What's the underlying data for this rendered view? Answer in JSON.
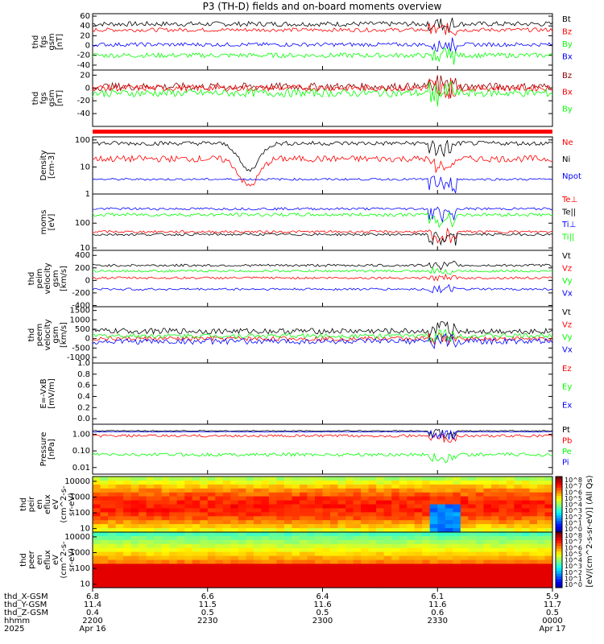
{
  "title": "P3 (TH-D) fields and on-board moments overview",
  "colors": {
    "black": "#000000",
    "red": "#ff0000",
    "green": "#00ff00",
    "blue": "#0000ff",
    "darkred": "#8b0000"
  },
  "chart_data": {
    "type": "line",
    "x_ticks": [
      {
        "pos": 0.0,
        "time": "2200",
        "date": "Apr 16",
        "x": "6.8",
        "y": "11.4",
        "z": "0.4"
      },
      {
        "pos": 0.25,
        "time": "2230",
        "date": "",
        "x": "6.6",
        "y": "11.5",
        "z": "0.5"
      },
      {
        "pos": 0.5,
        "time": "2300",
        "date": "",
        "x": "6.4",
        "y": "11.6",
        "z": "0.5"
      },
      {
        "pos": 0.75,
        "time": "2330",
        "date": "",
        "x": "6.1",
        "y": "11.6",
        "z": "0.6"
      },
      {
        "pos": 1.0,
        "time": "0000",
        "date": "Apr 17",
        "x": "5.9",
        "y": "11.7",
        "z": "0.5"
      }
    ],
    "bottom_labels": [
      "thd_X-GSM",
      "thd_Y-GSM",
      "thd_Z-GSM",
      "hhmm",
      "2025"
    ],
    "panels": [
      {
        "ylabel": [
          "thd",
          "fgs",
          "gsm",
          "[nT]"
        ],
        "scale": "lin",
        "ylim": [
          -50,
          65
        ],
        "ticks": [
          {
            "v": 60,
            "l": "60"
          },
          {
            "v": 40,
            "l": "40"
          },
          {
            "v": 20,
            "l": "20"
          },
          {
            "v": 0,
            "l": "0"
          },
          {
            "v": -20,
            "l": "-20"
          },
          {
            "v": -40,
            "l": "-40"
          }
        ],
        "series": [
          {
            "name": "Bt",
            "color": "#000000",
            "base": 44,
            "noise": 5
          },
          {
            "name": "Bz",
            "color": "#ff0000",
            "base": 32,
            "noise": 4
          },
          {
            "name": "By",
            "color": "#00ff00",
            "base": -20,
            "noise": 5
          },
          {
            "name": "Bx",
            "color": "#0000ff",
            "base": 2,
            "noise": 4
          }
        ]
      },
      {
        "ylabel": [
          "thd",
          "fgs",
          "gsm",
          "[nT]"
        ],
        "scale": "lin",
        "ylim": [
          -60,
          28
        ],
        "ticks": [
          {
            "v": 20,
            "l": "20"
          },
          {
            "v": 0,
            "l": "0"
          },
          {
            "v": -20,
            "l": "-20"
          },
          {
            "v": -40,
            "l": "-40"
          }
        ],
        "series": [
          {
            "name": "Bz",
            "color": "#8b0000",
            "base": 2,
            "noise": 6
          },
          {
            "name": "Bx",
            "color": "#ff0000",
            "base": 0,
            "noise": 5
          },
          {
            "name": "By",
            "color": "#00ff00",
            "base": -8,
            "noise": 6
          }
        ]
      },
      {
        "ylabel": [
          "Density",
          "[cm-3]"
        ],
        "scale": "log",
        "ylim": [
          1,
          130
        ],
        "ticks": [
          {
            "v": 100,
            "l": "100"
          },
          {
            "v": 10,
            "l": "10"
          },
          {
            "v": 1,
            "l": "1"
          }
        ],
        "series": [
          {
            "name": "Ne",
            "color": "#ff0000",
            "base": 20,
            "noise": 0.12
          },
          {
            "name": "Ni",
            "color": "#000000",
            "base": 75,
            "noise": 0.08
          },
          {
            "name": "Npot",
            "color": "#0000ff",
            "base": 3.5,
            "noise": 0.04
          }
        ]
      },
      {
        "ylabel": [
          "moms",
          "[eV]"
        ],
        "scale": "log",
        "ylim": [
          8,
          1500
        ],
        "ticks": [
          {
            "v": 100,
            "l": "100"
          },
          {
            "v": 10,
            "l": "10"
          }
        ],
        "series": [
          {
            "name": "Te⊥",
            "color": "#ff0000",
            "base": 45,
            "noise": 0.05
          },
          {
            "name": "Te||",
            "color": "#000000",
            "base": 35,
            "noise": 0.05
          },
          {
            "name": "Ti⊥",
            "color": "#0000ff",
            "base": 380,
            "noise": 0.05
          },
          {
            "name": "Ti||",
            "color": "#00ff00",
            "base": 220,
            "noise": 0.07
          }
        ]
      },
      {
        "ylabel": [
          "thd",
          "peim",
          "velocity",
          "gsm",
          "[km/s]"
        ],
        "scale": "lin",
        "ylim": [
          -420,
          480
        ],
        "ticks": [
          {
            "v": 400,
            "l": "400"
          },
          {
            "v": 200,
            "l": "200"
          },
          {
            "v": 0,
            "l": "0"
          },
          {
            "v": -200,
            "l": "-200"
          },
          {
            "v": -400,
            "l": "-400"
          }
        ],
        "series": [
          {
            "name": "Vt",
            "color": "#000000",
            "base": 240,
            "noise": 20
          },
          {
            "name": "Vz",
            "color": "#ff0000",
            "base": 40,
            "noise": 18
          },
          {
            "name": "Vy",
            "color": "#00ff00",
            "base": 150,
            "noise": 18
          },
          {
            "name": "Vx",
            "color": "#0000ff",
            "base": -140,
            "noise": 18
          }
        ]
      },
      {
        "ylabel": [
          "thd",
          "peem",
          "velocity",
          "gsm",
          "[km/s]"
        ],
        "scale": "lin",
        "ylim": [
          -1300,
          1700
        ],
        "ticks": [
          {
            "v": 1500,
            "l": "1500"
          },
          {
            "v": 1000,
            "l": "1000"
          },
          {
            "v": 500,
            "l": "500"
          },
          {
            "v": 0,
            "l": "0"
          },
          {
            "v": -500,
            "l": "-500"
          },
          {
            "v": -1000,
            "l": "-1000"
          }
        ],
        "series": [
          {
            "name": "Vt",
            "color": "#000000",
            "base": 400,
            "noise": 150
          },
          {
            "name": "Vz",
            "color": "#ff0000",
            "base": 0,
            "noise": 120
          },
          {
            "name": "Vy",
            "color": "#00ff00",
            "base": 150,
            "noise": 120
          },
          {
            "name": "Vx",
            "color": "#0000ff",
            "base": -150,
            "noise": 150
          }
        ]
      },
      {
        "ylabel": [
          "E=-VxB",
          "[mV/m]"
        ],
        "scale": "lin",
        "ylim": [
          -0.1,
          1.0
        ],
        "ticks": [
          {
            "v": 1.0,
            "l": "1.0"
          },
          {
            "v": 0.8,
            "l": "0.8"
          },
          {
            "v": 0.6,
            "l": "0.6"
          },
          {
            "v": 0.4,
            "l": "0.4"
          },
          {
            "v": 0.2,
            "l": "0.2"
          },
          {
            "v": 0.0,
            "l": "0.0"
          }
        ],
        "series": [
          {
            "name": "Ez",
            "color": "#ff0000",
            "base": null,
            "noise": 0
          },
          {
            "name": "Ey",
            "color": "#00ff00",
            "base": null,
            "noise": 0
          },
          {
            "name": "Ex",
            "color": "#0000ff",
            "base": null,
            "noise": 0
          }
        ]
      },
      {
        "ylabel": [
          "Pressure",
          "[nPa]"
        ],
        "scale": "log",
        "ylim": [
          0.004,
          4
        ],
        "ticks": [
          {
            "v": 1.0,
            "l": "1.00"
          },
          {
            "v": 0.1,
            "l": "0.10"
          },
          {
            "v": 0.01,
            "l": "0.01"
          }
        ],
        "series": [
          {
            "name": "Pt",
            "color": "#000000",
            "base": 1.6,
            "noise": 0.03
          },
          {
            "name": "Pb",
            "color": "#ff0000",
            "base": 0.8,
            "noise": 0.08
          },
          {
            "name": "Pe",
            "color": "#00ff00",
            "base": 0.06,
            "noise": 0.1
          },
          {
            "name": "Pi",
            "color": "#0000ff",
            "base": 1.4,
            "noise": 0.02
          }
        ]
      }
    ],
    "spectrograms": [
      {
        "ylabel": [
          "thd",
          "peir",
          "en",
          "eflux",
          "eV",
          "(cm^2-s-",
          "sr-eV)"
        ],
        "ticks": [
          {
            "v": 10000,
            "l": "10000"
          },
          {
            "v": 1000,
            "l": "1000"
          },
          {
            "v": 100,
            "l": "100"
          },
          {
            "v": 10,
            "l": "10"
          }
        ],
        "ylim": [
          6,
          20000
        ]
      },
      {
        "ylabel": [
          "thd",
          "peer",
          "en",
          "eflux",
          "eV",
          "(cm^2-s-",
          "sr-eV)"
        ],
        "ticks": [
          {
            "v": 10000,
            "l": "10000"
          },
          {
            "v": 1000,
            "l": "1000"
          },
          {
            "v": 100,
            "l": "100"
          },
          {
            "v": 10,
            "l": "10"
          }
        ],
        "ylim": [
          6,
          20000
        ]
      }
    ],
    "colorbar_label": "[eV/(cm^2-s-sr-eV)] (All Qs)",
    "colorbar_ticks": [
      "10^8",
      "10^7",
      "10^6",
      "10^5",
      "10^4",
      "10^3",
      "10^2",
      "10^1",
      "10^0"
    ]
  }
}
